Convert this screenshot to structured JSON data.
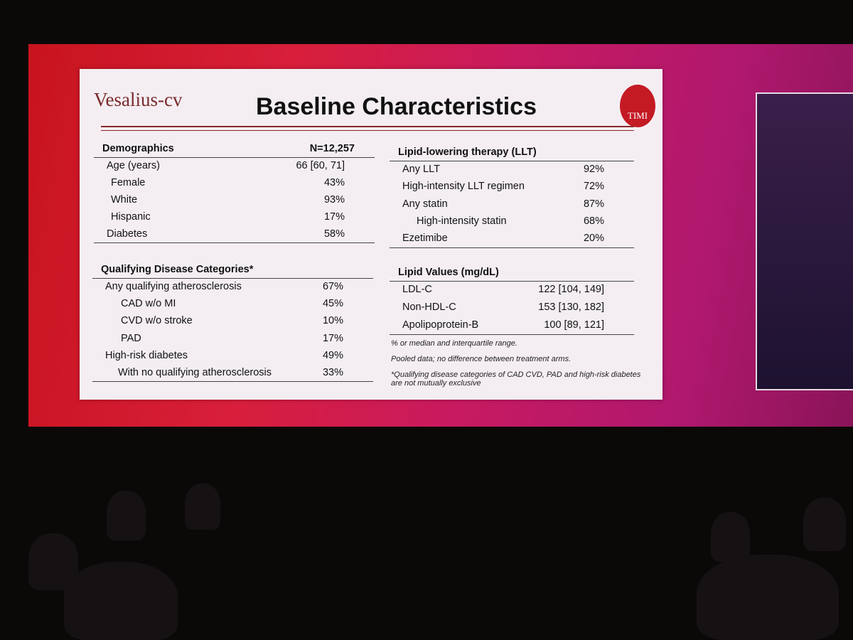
{
  "slide": {
    "logo": "Vesalius-cv",
    "title": "Baseline Characteristics",
    "badge": "TIMI",
    "demographics": {
      "header": [
        "Demographics",
        "N=12,257"
      ],
      "rows": [
        [
          "Age (years)",
          "66 [60, 71]"
        ],
        [
          "Female",
          "43%"
        ],
        [
          "White",
          "93%"
        ],
        [
          "Hispanic",
          "17%"
        ],
        [
          "Diabetes",
          "58%"
        ]
      ]
    },
    "qualifying": {
      "header": [
        "Qualifying Disease Categories*"
      ],
      "rows": [
        [
          "Any qualifying atherosclerosis",
          "67%"
        ],
        [
          "CAD w/o MI",
          "45%"
        ],
        [
          "CVD w/o stroke",
          "10%"
        ],
        [
          "PAD",
          "17%"
        ],
        [
          "High-risk diabetes",
          "49%"
        ],
        [
          "With no qualifying atherosclerosis",
          "33%"
        ]
      ]
    },
    "llt": {
      "header": [
        "Lipid-lowering therapy (LLT)"
      ],
      "rows": [
        [
          "Any LLT",
          "92%"
        ],
        [
          "High-intensity LLT regimen",
          "72%"
        ],
        [
          "Any statin",
          "87%"
        ],
        [
          "High-intensity statin",
          "68%"
        ],
        [
          "Ezetimibe",
          "20%"
        ]
      ]
    },
    "lipids": {
      "header": [
        "Lipid Values (mg/dL)"
      ],
      "rows": [
        [
          "LDL-C",
          "122 [104, 149]"
        ],
        [
          "Non-HDL-C",
          "153 [130, 182]"
        ],
        [
          "Apolipoprotein-B",
          "100 [89, 121]"
        ]
      ]
    },
    "footnotes": [
      "% or median and interquartile range.",
      "Pooled data; no difference between treatment arms.",
      "*Qualifying disease categories of CAD CVD, PAD and high-risk diabetes are not mutually exclusive"
    ]
  }
}
